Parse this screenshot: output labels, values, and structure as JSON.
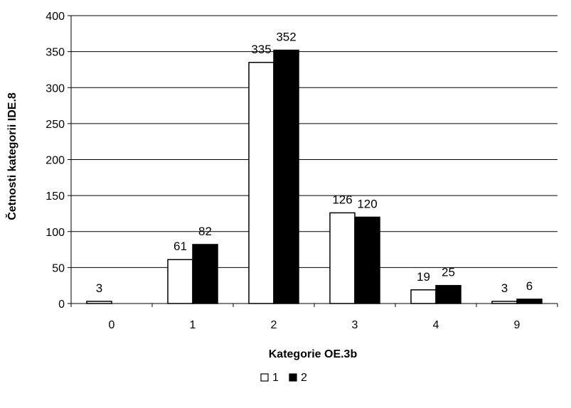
{
  "chart_data": {
    "type": "bar",
    "categories": [
      "0",
      "1",
      "2",
      "3",
      "4",
      "9"
    ],
    "series": [
      {
        "name": "1",
        "values": [
          3,
          61,
          335,
          126,
          19,
          3
        ],
        "labels": [
          "3",
          "61",
          "335",
          "126",
          "19",
          "3"
        ],
        "color": "#ffffff"
      },
      {
        "name": "2",
        "values": [
          0,
          82,
          352,
          120,
          25,
          6
        ],
        "labels": [
          "",
          "82",
          "352",
          "120",
          "25",
          "6"
        ],
        "color": "#000000"
      }
    ],
    "xlabel": "Kategorie OE.3b",
    "ylabel": "Četnosti kategorii IDE.8",
    "ylim": [
      0,
      400
    ],
    "yticks": [
      "0",
      "50",
      "100",
      "150",
      "200",
      "250",
      "300",
      "350",
      "400"
    ],
    "grid": true,
    "legend_position": "bottom-center"
  }
}
